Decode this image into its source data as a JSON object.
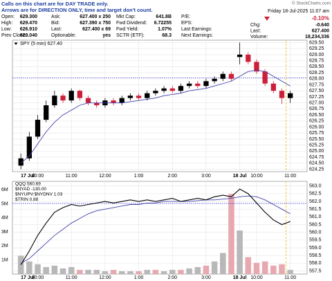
{
  "notes": [
    "Calls on this chart are for DAY TRADE only.",
    "Arrows are for DIRECTION ONLY, time and target don't count."
  ],
  "watermark": "© StockCharts.com",
  "date": "Friday  18-Jul-2025  11:07 am",
  "quote_rows": [
    [
      {
        "label": "Open:",
        "value": "629.300"
      },
      {
        "label": "Ask:",
        "value": "627.400 x 250"
      },
      {
        "label": "Mkt Cap:",
        "value": "641.8B"
      },
      {
        "label": "P/E:"
      }
    ],
    [
      {
        "label": "High:",
        "value": "629.470"
      },
      {
        "label": "Bid:",
        "value": "627.390 x 750"
      },
      {
        "label": "Fwd Dividend:",
        "value": "6.72255"
      },
      {
        "label": "EPS:"
      }
    ],
    [
      {
        "label": "Low:",
        "value": "626.910"
      },
      {
        "label": "Last:",
        "value": "627.400 x 69"
      },
      {
        "label": "Fwd Yield:",
        "value": "1.07%"
      },
      {
        "label": "Last Earnings:"
      }
    ],
    [
      {
        "label": "Prev Close:",
        "value": "628.040"
      },
      {
        "label": "Optionable:",
        "value": "yes"
      },
      {
        "label": "SCTR (ETF):",
        "value": "68.3"
      },
      {
        "label": "Next Earnings:"
      }
    ]
  ],
  "summary": {
    "change_pct": "-0.10%",
    "rows": [
      {
        "label": "Chg:",
        "value": "-0.640"
      },
      {
        "label": "Last:",
        "value": "627.400"
      },
      {
        "label": "Volume:",
        "value": "18,234,336"
      }
    ]
  },
  "chart_data": [
    {
      "type": "candlestick",
      "legend": "SPY (5 min) 627.40",
      "up_color": "#000000",
      "down_color": "#cc1f3a",
      "ma_color": "#3f3fa8",
      "grid": true,
      "open": [
        624.4,
        624.7,
        625.6,
        626.3,
        626.9,
        627.3,
        627.1,
        627.5,
        627.2,
        627.0,
        626.9,
        627.1,
        627.0,
        627.2,
        627.3,
        627.2,
        627.4,
        627.5,
        627.6,
        627.5,
        627.7,
        627.8,
        627.7,
        627.9,
        628.0,
        628.2,
        628.9,
        629.0,
        628.7,
        628.3,
        627.8,
        627.5,
        627.2
      ],
      "high": [
        624.9,
        625.8,
        626.5,
        627.1,
        627.5,
        627.4,
        627.6,
        627.55,
        627.3,
        627.1,
        627.2,
        627.2,
        627.3,
        627.4,
        627.4,
        627.5,
        627.6,
        627.7,
        627.7,
        627.8,
        627.9,
        627.9,
        628.0,
        628.1,
        628.3,
        628.3,
        629.5,
        629.1,
        628.8,
        628.4,
        627.9,
        627.6,
        627.5
      ],
      "low": [
        624.25,
        624.6,
        625.5,
        626.2,
        626.8,
        627.0,
        627.0,
        627.1,
        626.9,
        626.8,
        626.8,
        626.9,
        626.9,
        627.1,
        627.1,
        627.1,
        627.3,
        627.4,
        627.4,
        627.4,
        627.6,
        627.6,
        627.6,
        627.8,
        627.9,
        627.9,
        628.6,
        628.6,
        628.2,
        627.7,
        627.4,
        626.95,
        627.0
      ],
      "close": [
        624.7,
        625.6,
        626.3,
        626.9,
        627.3,
        627.1,
        627.5,
        627.2,
        627.0,
        626.9,
        627.1,
        627.0,
        627.2,
        627.3,
        627.2,
        627.4,
        627.5,
        627.6,
        627.5,
        627.7,
        627.8,
        627.7,
        627.9,
        628.0,
        628.2,
        628.0,
        629.0,
        628.7,
        628.3,
        627.8,
        627.5,
        627.2,
        627.4
      ],
      "ma": [
        624.5,
        624.8,
        625.3,
        625.8,
        626.2,
        626.5,
        626.7,
        626.9,
        627.0,
        627.0,
        627.0,
        627.0,
        627.0,
        627.05,
        627.1,
        627.15,
        627.2,
        627.3,
        627.35,
        627.4,
        627.5,
        627.55,
        627.6,
        627.7,
        627.8,
        627.9,
        628.1,
        628.3,
        628.35,
        628.3,
        628.1,
        627.9,
        627.7
      ],
      "reference_line": 628.04,
      "reference_color": "#3b3bd6",
      "marker_x": 32,
      "marker_color": "#e8c020",
      "xlim": [
        -1,
        34
      ],
      "xticks": [
        {
          "value": 0,
          "label": "17 Jul"
        },
        {
          "value": 2,
          "label": "10:00"
        },
        {
          "value": 6,
          "label": "11:00"
        },
        {
          "value": 10,
          "label": "12:00"
        },
        {
          "value": 14,
          "label": "1:00"
        },
        {
          "value": 18,
          "label": "2:00"
        },
        {
          "value": 22,
          "label": "3:00"
        },
        {
          "value": 26,
          "label": "18 Jul"
        },
        {
          "value": 28,
          "label": "10:00"
        },
        {
          "value": 32,
          "label": "11:00"
        }
      ],
      "ylim": [
        624.15,
        629.6
      ],
      "yticks": [
        624.25,
        {
          "value": 624.5,
          "label": "624.50"
        },
        624.75,
        {
          "value": 625,
          "label": "625.00"
        },
        625.25,
        {
          "value": 625.5,
          "label": "625.50"
        },
        625.75,
        {
          "value": 626,
          "label": "626.00"
        },
        626.25,
        {
          "value": 626.5,
          "label": "626.50"
        },
        626.75,
        {
          "value": 627,
          "label": "627.00"
        },
        627.25,
        {
          "value": 627.5,
          "label": "627.50"
        },
        627.75,
        {
          "value": 628,
          "label": "628.00"
        },
        628.25,
        {
          "value": 628.5,
          "label": "628.50"
        },
        628.75,
        {
          "value": 629,
          "label": "629.00"
        },
        629.25,
        {
          "value": 629.5,
          "label": "629.50"
        }
      ]
    },
    {
      "type": "volume_overlay",
      "legend": [
        "QQQ 560.69",
        "$NYAD -130.00",
        "$NYUPV:$NYDNV 1.03",
        "$TRIN 0.88"
      ],
      "line_color": "#000000",
      "ma_color": "#3f3fa8",
      "up_volume_color": "#b8b8b8",
      "down_volume_color": "#e8a8b0",
      "grid": true,
      "volume": [
        1.3,
        0.9,
        0.7,
        0.5,
        0.6,
        0.4,
        0.5,
        0.3,
        0.3,
        0.3,
        0.2,
        0.3,
        0.2,
        0.2,
        0.2,
        0.3,
        0.3,
        0.2,
        0.3,
        0.3,
        0.4,
        0.5,
        0.6,
        0.9,
        1.5,
        5.7,
        3.1,
        1.2,
        0.8,
        0.9,
        0.6,
        0.7,
        0.3
      ],
      "close": [
        557.9,
        558.8,
        559.8,
        560.6,
        561.3,
        561.6,
        561.8,
        561.7,
        561.8,
        561.9,
        562.0,
        561.9,
        562.0,
        562.1,
        562.0,
        562.1,
        562.0,
        562.1,
        562.2,
        562.0,
        562.1,
        562.2,
        562.1,
        562.3,
        562.4,
        562.3,
        562.8,
        562.5,
        561.9,
        561.3,
        560.8,
        560.5,
        560.7
      ],
      "ma": [
        558.0,
        558.3,
        558.8,
        559.3,
        559.8,
        560.2,
        560.6,
        560.9,
        561.2,
        561.4,
        561.5,
        561.6,
        561.7,
        561.8,
        561.8,
        561.9,
        561.9,
        562.0,
        562.0,
        562.0,
        562.0,
        562.05,
        562.1,
        562.1,
        562.15,
        562.2,
        562.3,
        562.35,
        562.3,
        562.1,
        561.8,
        561.5,
        561.2
      ],
      "reference_line": 561.87,
      "reference_color": "#3b3bd6",
      "marker_x": 32,
      "marker_color": "#e8c020",
      "xlim": [
        -1,
        34
      ],
      "xticks": [
        {
          "value": 0,
          "label": "17 Jul"
        },
        {
          "value": 2,
          "label": "10:00"
        },
        {
          "value": 6,
          "label": "11:00"
        },
        {
          "value": 10,
          "label": "12:00"
        },
        {
          "value": 14,
          "label": "1:00"
        },
        {
          "value": 18,
          "label": "2:00"
        },
        {
          "value": 22,
          "label": "3:00"
        },
        {
          "value": 26,
          "label": "18 Jul"
        },
        {
          "value": 28,
          "label": "10:00"
        },
        {
          "value": 32,
          "label": "11:00"
        }
      ],
      "ylim": [
        0,
        6.6
      ],
      "yticks": [
        {
          "value": 1,
          "label": "1M"
        },
        {
          "value": 2,
          "label": "2M"
        },
        {
          "value": 3,
          "label": "3M"
        },
        {
          "value": 4,
          "label": "4M"
        },
        {
          "value": 5,
          "label": "5M"
        },
        {
          "value": 6,
          "label": "6M"
        }
      ],
      "y2lim": [
        557.3,
        563.3
      ],
      "y2ticks": [
        557.5,
        {
          "value": 558,
          "label": "558.0"
        },
        558.5,
        {
          "value": 559,
          "label": "559.0"
        },
        559.5,
        {
          "value": 560,
          "label": "560.0"
        },
        560.5,
        {
          "value": 561,
          "label": "561.0"
        },
        561.5,
        {
          "value": 562,
          "label": "562.0"
        },
        562.5,
        {
          "value": 563,
          "label": "563.0"
        }
      ]
    }
  ]
}
